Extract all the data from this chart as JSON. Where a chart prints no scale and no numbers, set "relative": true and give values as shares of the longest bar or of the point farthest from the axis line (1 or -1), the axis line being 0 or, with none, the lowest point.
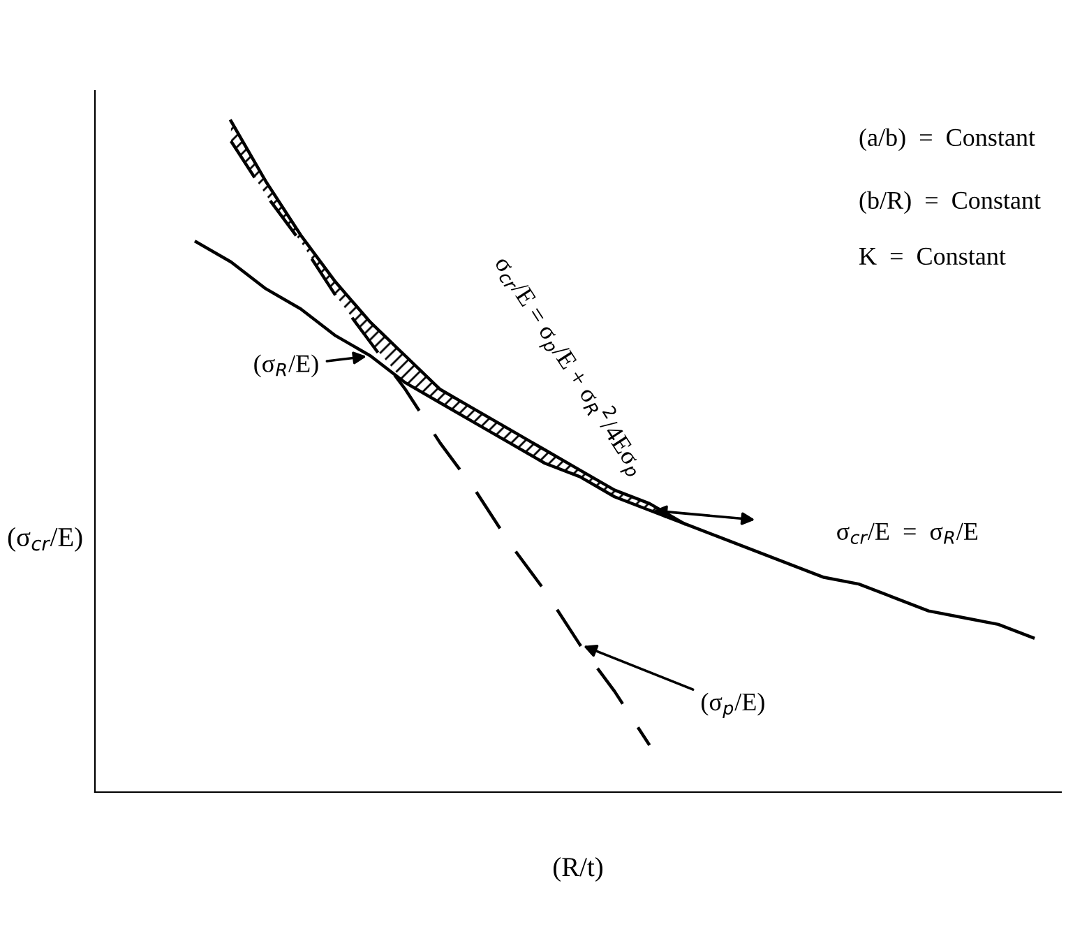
{
  "chart_data": {
    "type": "line",
    "relative": true,
    "xlabel": "(R/t)",
    "ylabel": "(σ$_{cr}$/E)",
    "categories": [
      null,
      null,
      null,
      null,
      null,
      null,
      null,
      null,
      null,
      null,
      null,
      null,
      null,
      null,
      null,
      null,
      null,
      null,
      null,
      null,
      null,
      null,
      null,
      null,
      null
    ],
    "series": [
      {
        "name": "(σ$_{R}$/E)",
        "color": "#000000",
        "line_style": "solid",
        "values": [
          0.82,
          0.79,
          0.75,
          0.72,
          0.68,
          0.65,
          0.61,
          0.58,
          0.55,
          0.52,
          0.49,
          0.47,
          0.44,
          0.42,
          0.4,
          0.38,
          0.36,
          0.34,
          0.32,
          0.31,
          0.29,
          0.27,
          0.26,
          0.25,
          0.23
        ]
      },
      {
        "name": "σ$_{cr}$/E = σ$_{p}$/E + σ$_{R}$$^{2}$/4Eσ$_{p}$",
        "color": "#000000",
        "line_style": "solid",
        "values": [
          null,
          1.0,
          0.91,
          0.83,
          0.76,
          0.7,
          0.65,
          0.6,
          0.57,
          0.54,
          0.51,
          0.48,
          0.45,
          0.43,
          0.4,
          null,
          null,
          null,
          null,
          null,
          null,
          null,
          null,
          null,
          null
        ]
      },
      {
        "name": "(σ$_{p}$/E)",
        "color": "#000000",
        "line_style": "dashed",
        "values": [
          null,
          0.97,
          0.89,
          0.82,
          0.74,
          0.67,
          0.6,
          0.52,
          0.45,
          0.37,
          0.3,
          0.22,
          0.15,
          0.07,
          null,
          null,
          null,
          null,
          null,
          null,
          null,
          null,
          null,
          null,
          null
        ]
      }
    ],
    "annotations": [
      "(a/b)  =  Constant",
      "(b/R)  =  Constant",
      "K  =  Constant",
      "σ$_{cr}$/E  =  σ$_{R}$/E"
    ]
  }
}
